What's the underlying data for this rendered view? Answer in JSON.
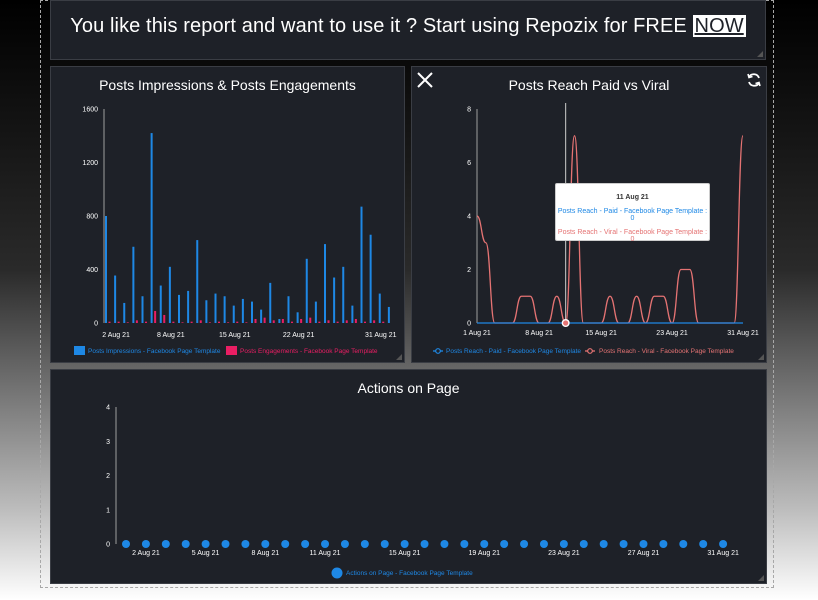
{
  "banner": {
    "text": "You like this report and want to use it ? Start using Repozix for FREE",
    "link": "NOW"
  },
  "colors": {
    "panel_bg": "#1e2128",
    "blue": "#1e88e5",
    "pink": "#e91e63",
    "red_line": "#e57373",
    "axis": "#9e9e9e"
  },
  "icons": {
    "close": "close-icon",
    "refresh": "refresh-icon"
  },
  "tooltip": {
    "title": "11 Aug 21",
    "paid_line": "Posts Reach - Paid - Facebook Page Template : 0",
    "viral_line": "Posts Reach - Viral - Facebook Page Template : 0"
  },
  "chart_data": [
    {
      "type": "bar",
      "title": "Posts Impressions & Posts Engagements",
      "ylim": [
        0,
        1600
      ],
      "yticks": [
        0,
        400,
        800,
        1200,
        1600
      ],
      "xticks": [
        "2 Aug 21",
        "8 Aug 21",
        "15 Aug 21",
        "22 Aug 21",
        "31 Aug 21"
      ],
      "x": [
        "1 Aug 21",
        "2 Aug 21",
        "3 Aug 21",
        "4 Aug 21",
        "5 Aug 21",
        "6 Aug 21",
        "7 Aug 21",
        "8 Aug 21",
        "9 Aug 21",
        "10 Aug 21",
        "11 Aug 21",
        "12 Aug 21",
        "13 Aug 21",
        "14 Aug 21",
        "15 Aug 21",
        "16 Aug 21",
        "17 Aug 21",
        "18 Aug 21",
        "19 Aug 21",
        "20 Aug 21",
        "21 Aug 21",
        "22 Aug 21",
        "23 Aug 21",
        "24 Aug 21",
        "25 Aug 21",
        "26 Aug 21",
        "27 Aug 21",
        "28 Aug 21",
        "29 Aug 21",
        "30 Aug 21",
        "31 Aug 21"
      ],
      "series": [
        {
          "name": "Posts Impressions - Facebook Page Template",
          "color": "#1e88e5",
          "values": [
            800,
            355,
            150,
            570,
            200,
            1420,
            280,
            420,
            210,
            240,
            620,
            170,
            220,
            200,
            130,
            180,
            160,
            100,
            300,
            30,
            200,
            80,
            480,
            160,
            590,
            340,
            420,
            130,
            870,
            660,
            220
          ]
        },
        {
          "name": "Posts Engagements - Facebook Page Template",
          "color": "#e91e63",
          "values": [
            10,
            10,
            5,
            20,
            10,
            90,
            60,
            10,
            5,
            10,
            20,
            5,
            10,
            5,
            10,
            5,
            30,
            40,
            20,
            30,
            10,
            30,
            40,
            10,
            20,
            10,
            20,
            30,
            10,
            20,
            10
          ]
        }
      ],
      "trailing_value": 120,
      "legend": "bottom"
    },
    {
      "type": "line",
      "title": "Posts Reach Paid vs Viral",
      "ylim": [
        0,
        8
      ],
      "yticks": [
        0,
        2,
        4,
        6,
        8
      ],
      "xticks": [
        "1 Aug 21",
        "8 Aug 21",
        "15 Aug 21",
        "23 Aug 21",
        "31 Aug 21"
      ],
      "x": [
        "1 Aug 21",
        "2 Aug 21",
        "3 Aug 21",
        "4 Aug 21",
        "5 Aug 21",
        "6 Aug 21",
        "7 Aug 21",
        "8 Aug 21",
        "9 Aug 21",
        "10 Aug 21",
        "11 Aug 21",
        "12 Aug 21",
        "13 Aug 21",
        "14 Aug 21",
        "15 Aug 21",
        "16 Aug 21",
        "17 Aug 21",
        "18 Aug 21",
        "19 Aug 21",
        "20 Aug 21",
        "21 Aug 21",
        "22 Aug 21",
        "23 Aug 21",
        "24 Aug 21",
        "25 Aug 21",
        "26 Aug 21",
        "27 Aug 21",
        "28 Aug 21",
        "29 Aug 21",
        "30 Aug 21",
        "31 Aug 21"
      ],
      "series": [
        {
          "name": "Posts Reach - Paid - Facebook Page Template",
          "color": "#1e88e5",
          "values": [
            0,
            0,
            0,
            0,
            0,
            0,
            0,
            0,
            0,
            0,
            0,
            0,
            0,
            0,
            0,
            0,
            0,
            0,
            0,
            0,
            0,
            0,
            0,
            0,
            0,
            0,
            0,
            0,
            0,
            0,
            0
          ]
        },
        {
          "name": "Posts Reach - Viral - Facebook Page Template",
          "color": "#e57373",
          "values": [
            4,
            3,
            0,
            0,
            0,
            1,
            1,
            0,
            0,
            1,
            0,
            7,
            0,
            0,
            0,
            1,
            0,
            0,
            1,
            0,
            1,
            1,
            0,
            2,
            2,
            0,
            0,
            0,
            0,
            0,
            7
          ]
        }
      ],
      "highlight": "11 Aug 21",
      "legend": "bottom"
    },
    {
      "type": "scatter",
      "title": "Actions on Page",
      "ylim": [
        0,
        4
      ],
      "yticks": [
        0,
        1,
        2,
        3,
        4
      ],
      "xticks": [
        "2 Aug 21",
        "5 Aug 21",
        "8 Aug 21",
        "11 Aug 21",
        "15 Aug 21",
        "19 Aug 21",
        "23 Aug 21",
        "27 Aug 21",
        "31 Aug 21"
      ],
      "x": [
        "1 Aug 21",
        "2 Aug 21",
        "3 Aug 21",
        "4 Aug 21",
        "5 Aug 21",
        "6 Aug 21",
        "7 Aug 21",
        "8 Aug 21",
        "9 Aug 21",
        "10 Aug 21",
        "11 Aug 21",
        "12 Aug 21",
        "13 Aug 21",
        "14 Aug 21",
        "15 Aug 21",
        "16 Aug 21",
        "17 Aug 21",
        "18 Aug 21",
        "19 Aug 21",
        "20 Aug 21",
        "21 Aug 21",
        "22 Aug 21",
        "23 Aug 21",
        "24 Aug 21",
        "25 Aug 21",
        "26 Aug 21",
        "27 Aug 21",
        "28 Aug 21",
        "29 Aug 21",
        "30 Aug 21",
        "31 Aug 21"
      ],
      "series": [
        {
          "name": "Actions on Page - Facebook Page Template",
          "color": "#1e88e5",
          "values": [
            0,
            0,
            0,
            0,
            0,
            0,
            0,
            0,
            0,
            0,
            0,
            0,
            0,
            0,
            0,
            0,
            0,
            0,
            0,
            0,
            0,
            0,
            0,
            0,
            0,
            0,
            0,
            0,
            0,
            0,
            0
          ]
        }
      ],
      "legend": "bottom"
    }
  ]
}
